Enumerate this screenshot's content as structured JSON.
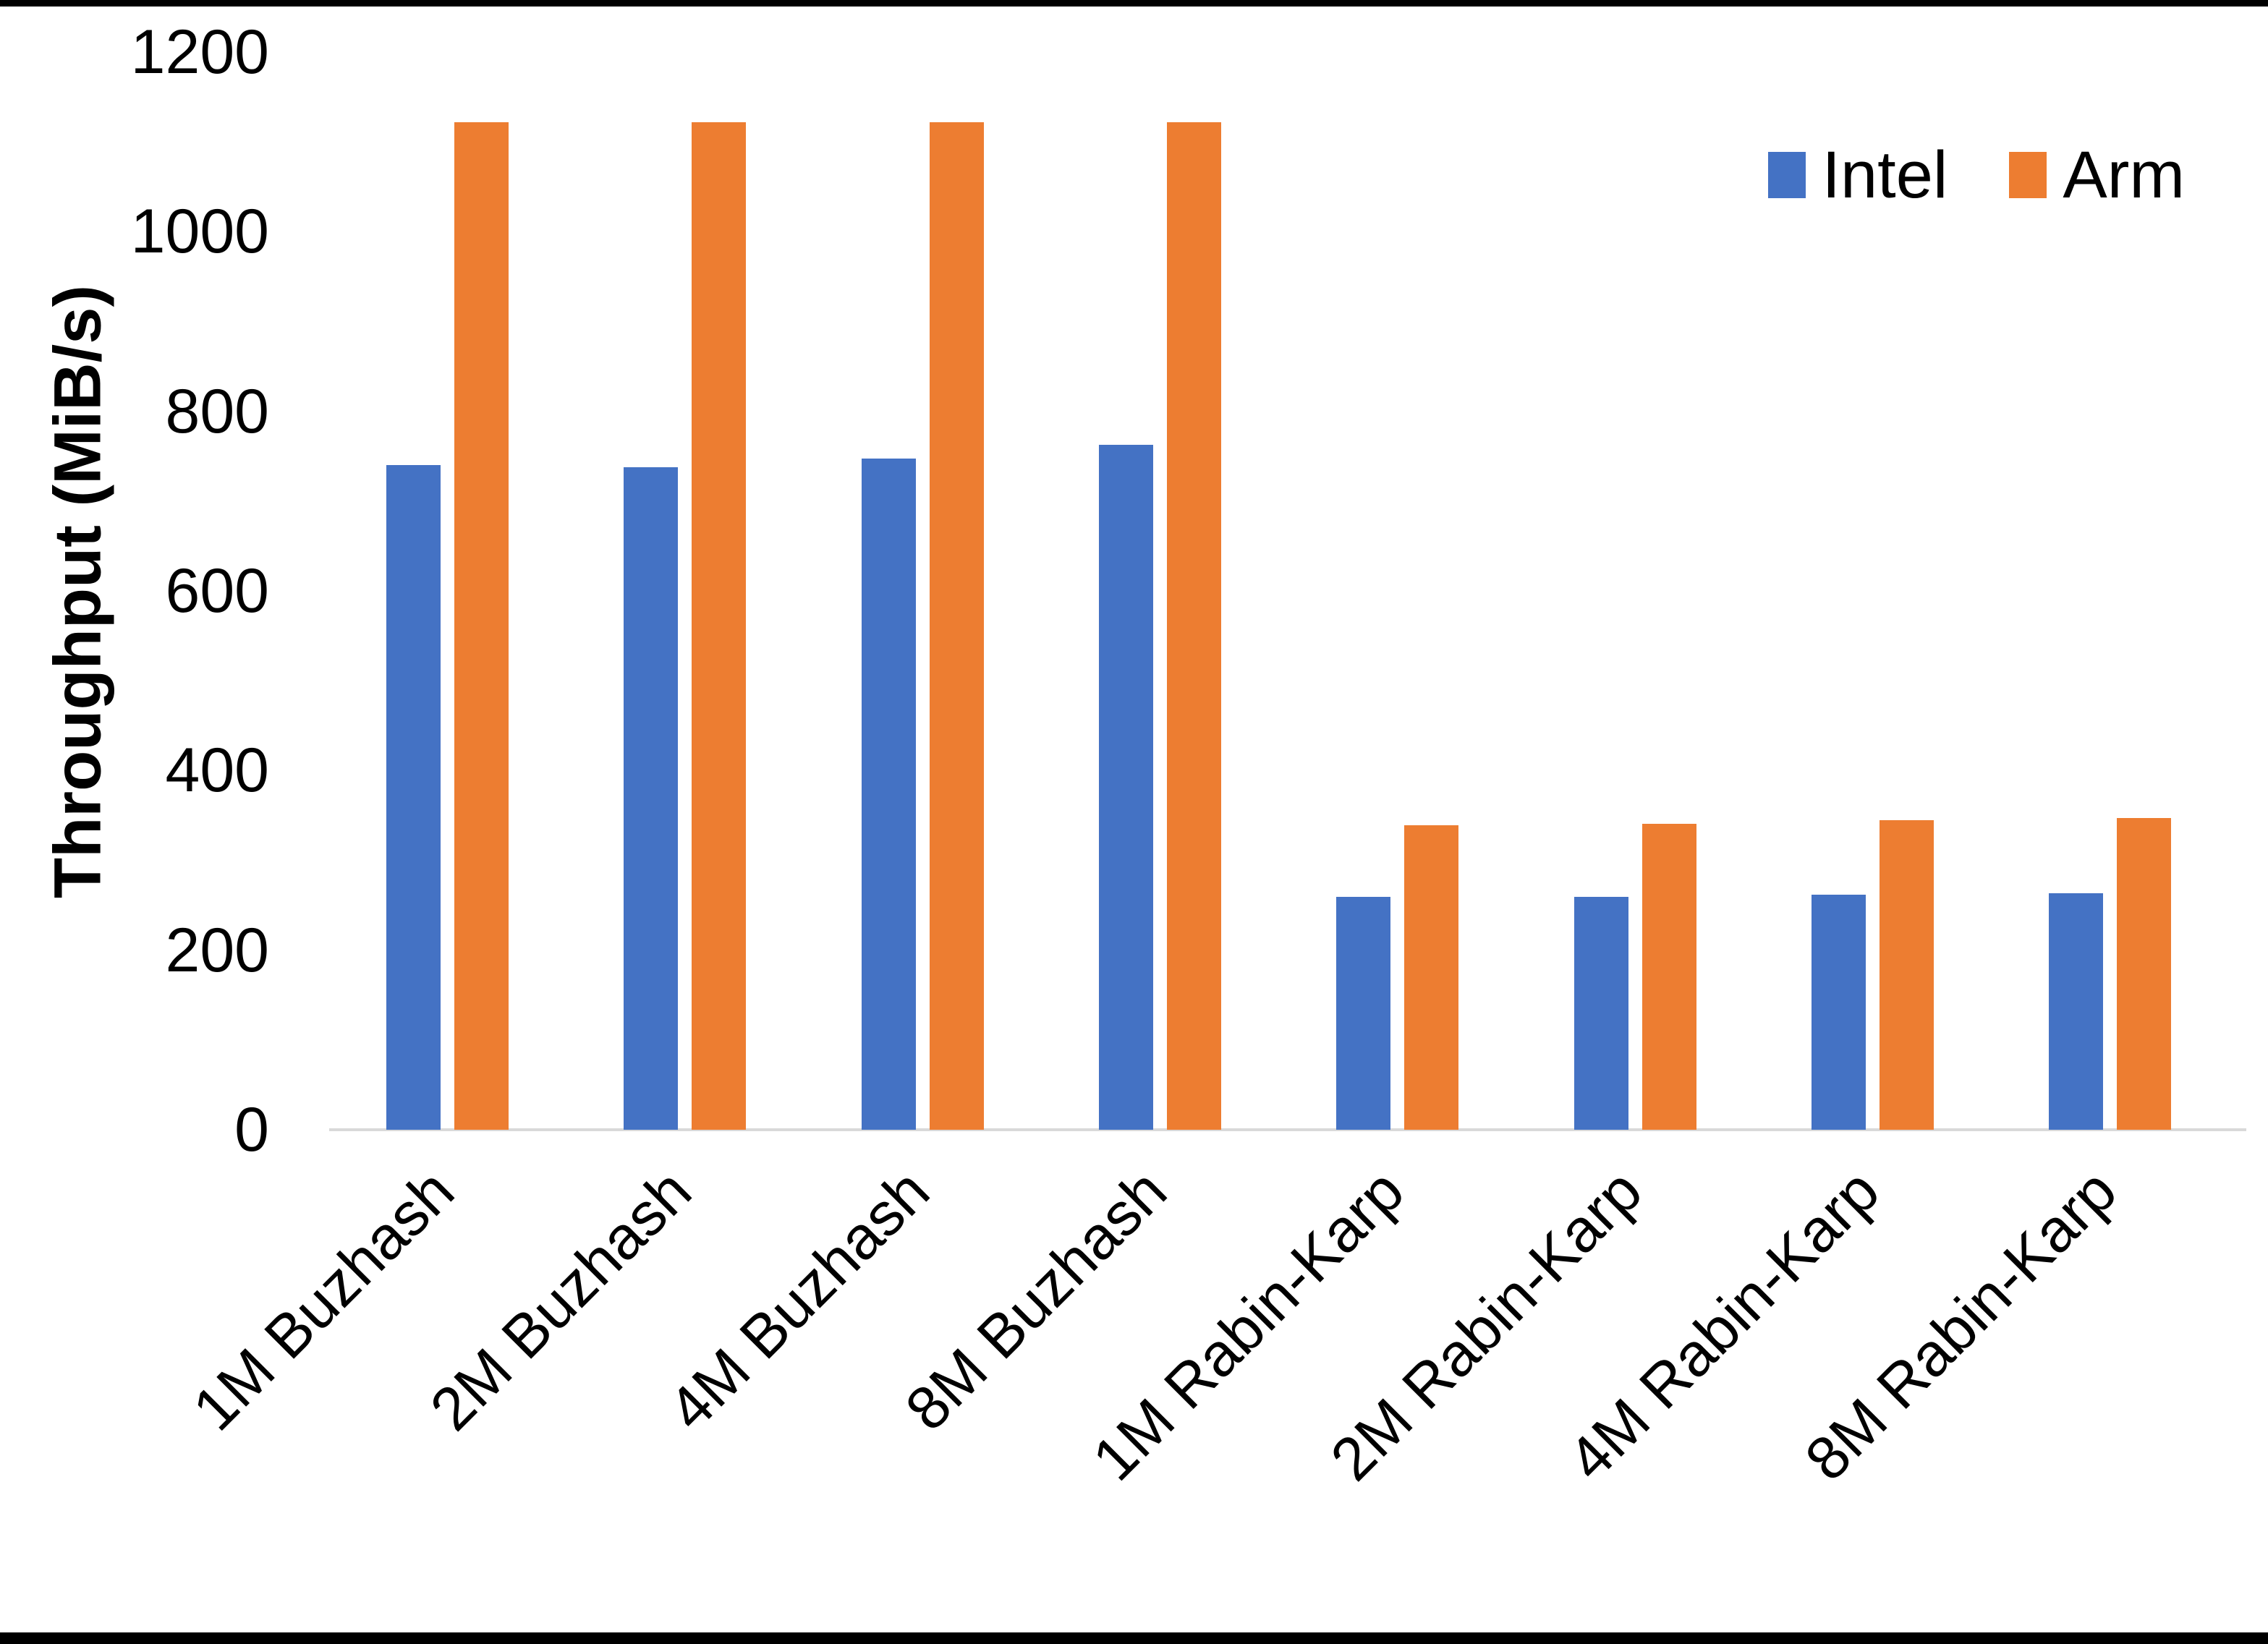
{
  "chart_data": {
    "type": "bar",
    "title": "",
    "xlabel": "",
    "ylabel": "Throughput (MiB/s)",
    "ylim": [
      0,
      1200
    ],
    "yticks": [
      0,
      200,
      400,
      600,
      800,
      1000,
      1200
    ],
    "grid": false,
    "legend_position": "top-right",
    "categories": [
      "1M Buzhash",
      "2M Buzhash",
      "4M Buzhash",
      "8M Buzhash",
      "1M Rabin-Karp",
      "2M Rabin-Karp",
      "4M Rabin-Karp",
      "8M Rabin-Karp"
    ],
    "series": [
      {
        "name": "Intel",
        "color": "#4472C4",
        "values": [
          740,
          738,
          747,
          763,
          259,
          259,
          262,
          263
        ]
      },
      {
        "name": "Arm",
        "color": "#ED7D31",
        "values": [
          1122,
          1122,
          1122,
          1122,
          339,
          341,
          345,
          347
        ]
      }
    ],
    "axis_line_color": "#D9D9D9",
    "text_color": "#000000",
    "background_color": "#FFFFFF",
    "page_border_color": "#000000"
  }
}
